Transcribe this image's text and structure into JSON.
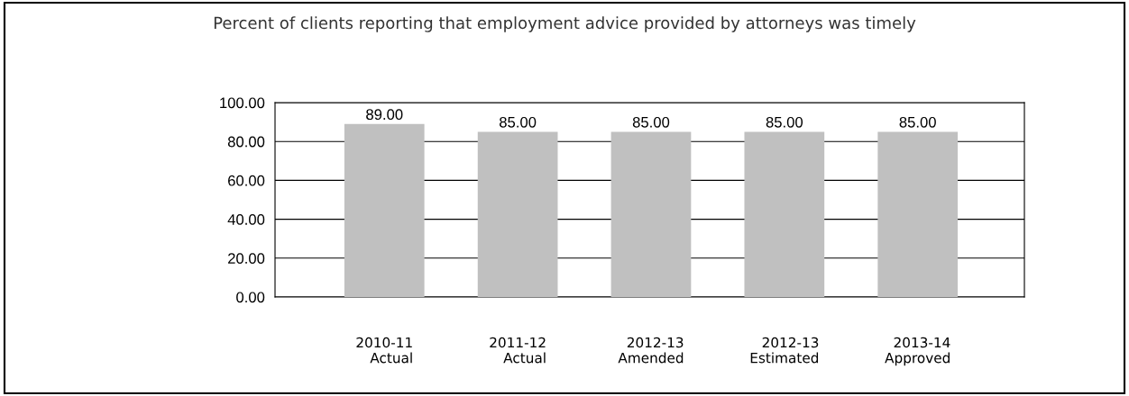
{
  "chart_data": {
    "type": "bar",
    "title": "Percent of clients reporting that employment advice provided by attorneys was timely",
    "categories": [
      "2010-11\nActual",
      "2011-12\nActual",
      "2012-13\nAmended",
      "2012-13\nEstimated",
      "2013-14\nApproved"
    ],
    "values": [
      89,
      85,
      85,
      85,
      85
    ],
    "value_labels": [
      "89.00",
      "85.00",
      "85.00",
      "85.00",
      "85.00"
    ],
    "color": "#c0c0c0",
    "ylim": [
      0,
      100
    ],
    "yticks": [
      {
        "value": 0,
        "label": "0.00"
      },
      {
        "value": 20,
        "label": "20.00"
      },
      {
        "value": 40,
        "label": "40.00"
      },
      {
        "value": 60,
        "label": "60.00"
      },
      {
        "value": 80,
        "label": "80.00"
      },
      {
        "value": 100,
        "label": "100.00"
      }
    ],
    "grid": "y"
  }
}
